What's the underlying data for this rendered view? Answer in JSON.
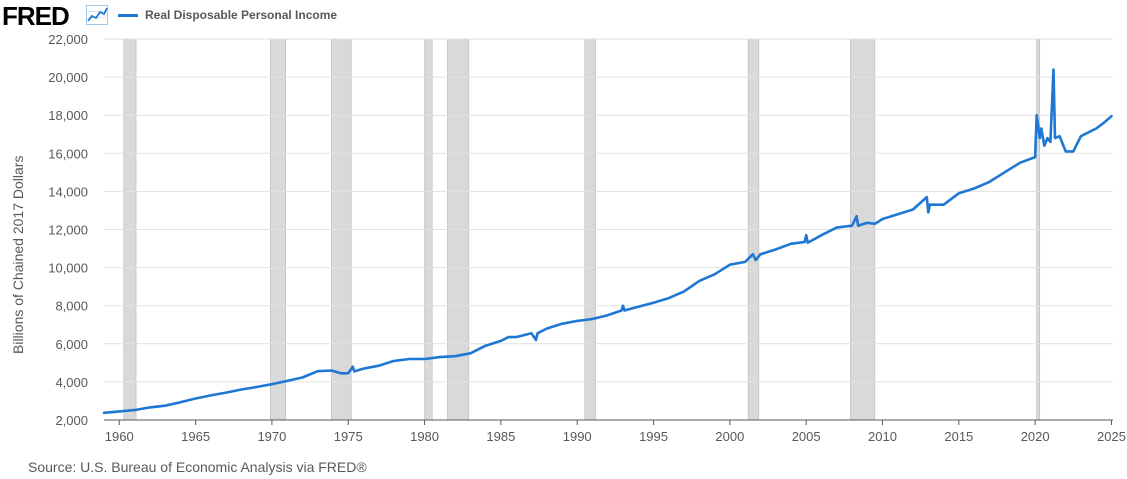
{
  "header": {
    "logo_text": "FRED",
    "logo_icon": "line-chart-icon"
  },
  "legend": {
    "label": "Real Disposable Personal Income",
    "color": "#1f77d4"
  },
  "source_text": "Source: U.S. Bureau of Economic Analysis via FRED®",
  "colors": {
    "line": "#1f77d4",
    "recession": "#d9d9d9",
    "grid": "#e1e1e1"
  },
  "chart_data": {
    "type": "line",
    "title": "",
    "xlabel": "",
    "ylabel": "Billions of Chained 2017 Dollars",
    "xlim": [
      1959.0,
      2025.1
    ],
    "ylim": [
      2000,
      22000
    ],
    "yticks": [
      2000,
      4000,
      6000,
      8000,
      10000,
      12000,
      14000,
      16000,
      18000,
      20000,
      22000
    ],
    "ytick_labels": [
      "2,000",
      "4,000",
      "6,000",
      "8,000",
      "10,000",
      "12,000",
      "14,000",
      "16,000",
      "18,000",
      "20,000",
      "22,000"
    ],
    "xticks": [
      1960,
      1965,
      1970,
      1975,
      1980,
      1985,
      1990,
      1995,
      2000,
      2005,
      2010,
      2015,
      2020,
      2025
    ],
    "xtick_labels": [
      "1960",
      "1965",
      "1970",
      "1975",
      "1980",
      "1985",
      "1990",
      "1995",
      "2000",
      "2005",
      "2010",
      "2015",
      "2020",
      "2025"
    ],
    "grid": "horizontal",
    "legend_position": "top-left",
    "recessions": [
      [
        1960.3,
        1961.1
      ],
      [
        1969.9,
        1970.9
      ],
      [
        1973.9,
        1975.2
      ],
      [
        1980.0,
        1980.5
      ],
      [
        1981.5,
        1982.9
      ],
      [
        1990.5,
        1991.2
      ],
      [
        2001.2,
        2001.9
      ],
      [
        2007.9,
        2009.5
      ],
      [
        2020.1,
        2020.3
      ]
    ],
    "series": [
      {
        "name": "Real Disposable Personal Income",
        "x": [
          1959.0,
          1960.0,
          1961.0,
          1962.0,
          1963.0,
          1964.0,
          1965.0,
          1966.0,
          1967.0,
          1968.0,
          1969.0,
          1970.0,
          1971.0,
          1972.0,
          1973.0,
          1973.9,
          1974.5,
          1975.0,
          1975.3,
          1975.4,
          1976.0,
          1977.0,
          1978.0,
          1979.0,
          1980.0,
          1981.0,
          1982.0,
          1983.0,
          1984.0,
          1985.0,
          1985.5,
          1986.0,
          1987.0,
          1987.3,
          1987.4,
          1988.0,
          1989.0,
          1990.0,
          1990.5,
          1991.0,
          1992.0,
          1992.9,
          1993.0,
          1993.1,
          1994.0,
          1995.0,
          1996.0,
          1997.0,
          1998.0,
          1999.0,
          2000.0,
          2001.0,
          2001.5,
          2001.7,
          2002.0,
          2003.0,
          2004.0,
          2004.9,
          2005.0,
          2005.1,
          2006.0,
          2007.0,
          2008.0,
          2008.3,
          2008.4,
          2009.0,
          2009.5,
          2010.0,
          2011.0,
          2012.0,
          2012.9,
          2013.0,
          2013.1,
          2014.0,
          2015.0,
          2016.0,
          2017.0,
          2018.0,
          2019.0,
          2020.0,
          2020.1,
          2020.3,
          2020.4,
          2020.6,
          2020.8,
          2021.0,
          2021.2,
          2021.3,
          2021.6,
          2022.0,
          2022.5,
          2023.0,
          2024.0,
          2024.5,
          2025.0
        ],
        "y": [
          2380,
          2450,
          2520,
          2660,
          2750,
          2930,
          3130,
          3290,
          3440,
          3600,
          3730,
          3880,
          4050,
          4230,
          4560,
          4600,
          4450,
          4450,
          4800,
          4550,
          4700,
          4850,
          5100,
          5200,
          5200,
          5300,
          5350,
          5500,
          5900,
          6150,
          6350,
          6350,
          6550,
          6200,
          6550,
          6800,
          7050,
          7200,
          7250,
          7300,
          7500,
          7750,
          8000,
          7750,
          7950,
          8150,
          8400,
          8750,
          9300,
          9650,
          10150,
          10300,
          10700,
          10400,
          10700,
          10950,
          11250,
          11350,
          11700,
          11300,
          11700,
          12100,
          12200,
          12700,
          12200,
          12350,
          12300,
          12550,
          12800,
          13050,
          13700,
          12900,
          13300,
          13300,
          13900,
          14150,
          14500,
          15000,
          15500,
          15800,
          18000,
          16800,
          17300,
          16400,
          16800,
          16600,
          20400,
          16800,
          16900,
          16100,
          16100,
          16900,
          17300,
          17600,
          17950
        ]
      }
    ]
  }
}
